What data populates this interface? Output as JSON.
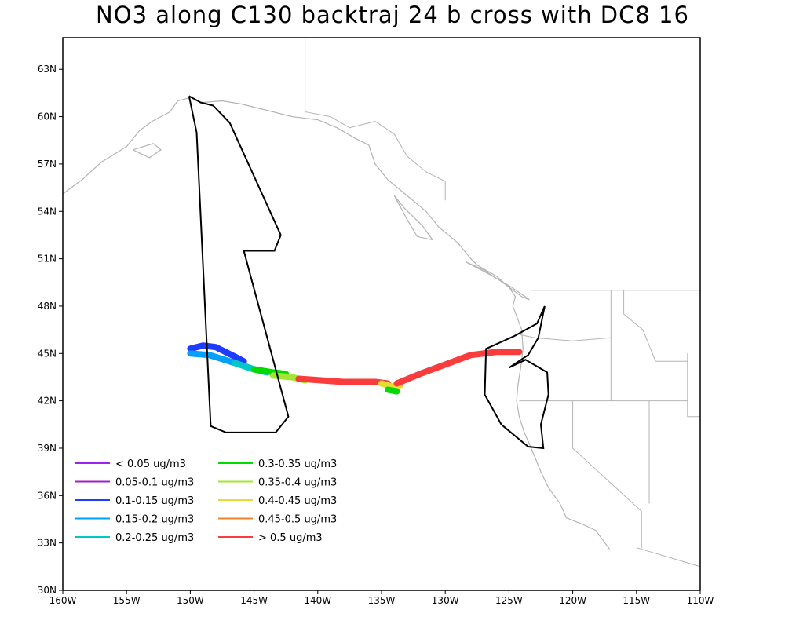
{
  "title": "NO3 along C130 backtraj 24 b cross with DC8 16",
  "map": {
    "lon_range": [
      -160,
      -110
    ],
    "lat_range": [
      30,
      65
    ],
    "x_ticks": [
      {
        "lon": -160,
        "label": "160W"
      },
      {
        "lon": -155,
        "label": "155W"
      },
      {
        "lon": -150,
        "label": "150W"
      },
      {
        "lon": -145,
        "label": "145W"
      },
      {
        "lon": -140,
        "label": "140W"
      },
      {
        "lon": -135,
        "label": "135W"
      },
      {
        "lon": -130,
        "label": "130W"
      },
      {
        "lon": -125,
        "label": "125W"
      },
      {
        "lon": -120,
        "label": "120W"
      },
      {
        "lon": -115,
        "label": "115W"
      },
      {
        "lon": -110,
        "label": "110W"
      }
    ],
    "y_ticks": [
      {
        "lat": 30,
        "label": "30N"
      },
      {
        "lat": 33,
        "label": "33N"
      },
      {
        "lat": 36,
        "label": "36N"
      },
      {
        "lat": 39,
        "label": "39N"
      },
      {
        "lat": 42,
        "label": "42N"
      },
      {
        "lat": 45,
        "label": "45N"
      },
      {
        "lat": 48,
        "label": "48N"
      },
      {
        "lat": 51,
        "label": "51N"
      },
      {
        "lat": 54,
        "label": "54N"
      },
      {
        "lat": 57,
        "label": "57N"
      },
      {
        "lat": 60,
        "label": "60N"
      },
      {
        "lat": 63,
        "label": "63N"
      }
    ],
    "colors": {
      "coast": "#b4b4b4",
      "flight_track": "#000000",
      "frame": "#000000"
    }
  },
  "legend": [
    {
      "label": "< 0.05 ug/m3",
      "color": "#a020f0"
    },
    {
      "label": "0.05-0.1 ug/m3",
      "color": "#a020c8"
    },
    {
      "label": "0.1-0.15 ug/m3",
      "color": "#1e3cff"
    },
    {
      "label": "0.15-0.2 ug/m3",
      "color": "#00a0ff"
    },
    {
      "label": "0.2-0.25 ug/m3",
      "color": "#00c8c8"
    },
    {
      "label": "0.3-0.35 ug/m3",
      "color": "#00dc00"
    },
    {
      "label": "0.35-0.4 ug/m3",
      "color": "#a0e632"
    },
    {
      "label": "0.4-0.45 ug/m3",
      "color": "#e6dc32"
    },
    {
      "label": "0.45-0.5 ug/m3",
      "color": "#f08228"
    },
    {
      "label": "> 0.5 ug/m3",
      "color": "#fa3c3c"
    }
  ],
  "flight_track": [
    [
      -150.1,
      61.3
    ],
    [
      -149.2,
      60.9
    ],
    [
      -148.2,
      60.7
    ],
    [
      -146.9,
      59.6
    ],
    [
      -142.9,
      52.5
    ],
    [
      -143.4,
      51.5
    ],
    [
      -145.8,
      51.5
    ],
    [
      -142.3,
      41.0
    ],
    [
      -143.3,
      40.0
    ],
    [
      -147.2,
      40.0
    ],
    [
      -148.4,
      40.4
    ],
    [
      -149.5,
      59.0
    ],
    [
      -150.1,
      61.3
    ]
  ],
  "dc8_track": [
    [
      -122.2,
      48.0
    ],
    [
      -122.8,
      46.9
    ],
    [
      -124.6,
      46.1
    ],
    [
      -126.8,
      45.3
    ],
    [
      -126.9,
      42.4
    ],
    [
      -125.6,
      40.5
    ],
    [
      -123.5,
      39.1
    ],
    [
      -122.3,
      39.0
    ],
    [
      -122.5,
      40.5
    ],
    [
      -121.9,
      42.4
    ],
    [
      -122.0,
      43.8
    ],
    [
      -123.7,
      44.6
    ],
    [
      -125.0,
      44.1
    ],
    [
      -123.5,
      44.9
    ],
    [
      -122.7,
      46.0
    ],
    [
      -122.2,
      48.0
    ]
  ],
  "trajectory_bands": [
    {
      "color": "#1e3cff",
      "points": [
        [
          -150.0,
          45.3
        ],
        [
          -149.0,
          45.5
        ],
        [
          -148.0,
          45.4
        ],
        [
          -146.5,
          44.8
        ],
        [
          -145.8,
          44.5
        ]
      ]
    },
    {
      "color": "#00a0ff",
      "points": [
        [
          -150.0,
          45.0
        ],
        [
          -148.5,
          44.9
        ],
        [
          -146.5,
          44.4
        ],
        [
          -145.0,
          44.0
        ]
      ]
    },
    {
      "color": "#00c8c8",
      "points": [
        [
          -146.5,
          44.4
        ],
        [
          -145.0,
          44.0
        ],
        [
          -144.0,
          43.8
        ]
      ]
    },
    {
      "color": "#00dc00",
      "points": [
        [
          -145.0,
          44.0
        ],
        [
          -143.5,
          43.8
        ],
        [
          -142.5,
          43.7
        ]
      ]
    },
    {
      "color": "#a0e632",
      "points": [
        [
          -143.5,
          43.6
        ],
        [
          -142.0,
          43.5
        ],
        [
          -141.0,
          43.3
        ]
      ]
    },
    {
      "color": "#fa3c3c",
      "points": [
        [
          -141.5,
          43.4
        ],
        [
          -138.0,
          43.2
        ],
        [
          -135.5,
          43.2
        ],
        [
          -134.5,
          43.1
        ]
      ]
    },
    {
      "color": "#e6dc32",
      "points": [
        [
          -135.0,
          43.1
        ],
        [
          -134.2,
          42.9
        ],
        [
          -133.5,
          43.0
        ]
      ]
    },
    {
      "color": "#00dc00",
      "points": [
        [
          -134.5,
          42.7
        ],
        [
          -133.8,
          42.6
        ]
      ]
    },
    {
      "color": "#fa3c3c",
      "points": [
        [
          -133.8,
          43.1
        ],
        [
          -132.0,
          43.7
        ],
        [
          -130.0,
          44.3
        ],
        [
          -128.0,
          44.9
        ],
        [
          -126.0,
          45.1
        ],
        [
          -124.2,
          45.1
        ]
      ]
    }
  ],
  "coastlines": [
    [
      [
        -160.0,
        55.1
      ],
      [
        -158.5,
        56.0
      ],
      [
        -157.0,
        57.1
      ],
      [
        -155.0,
        58.1
      ],
      [
        -154.0,
        59.1
      ],
      [
        -153.0,
        59.7
      ],
      [
        -151.6,
        60.3
      ],
      [
        -151.0,
        61.0
      ],
      [
        -150.0,
        61.2
      ]
    ],
    [
      [
        -149.0,
        60.9
      ],
      [
        -147.5,
        61.0
      ],
      [
        -146.0,
        60.8
      ],
      [
        -144.0,
        60.4
      ],
      [
        -142.0,
        60.0
      ],
      [
        -140.0,
        59.8
      ],
      [
        -138.5,
        59.3
      ],
      [
        -137.0,
        58.6
      ],
      [
        -136.0,
        58.2
      ],
      [
        -135.5,
        57.0
      ],
      [
        -134.5,
        56.0
      ],
      [
        -133.0,
        55.0
      ],
      [
        -131.5,
        54.0
      ],
      [
        -130.5,
        53.0
      ],
      [
        -129.0,
        52.0
      ],
      [
        -128.0,
        51.0
      ],
      [
        -127.5,
        50.6
      ],
      [
        -126.0,
        49.9
      ],
      [
        -125.0,
        49.2
      ],
      [
        -124.5,
        48.6
      ],
      [
        -124.7,
        48.0
      ],
      [
        -124.0,
        46.5
      ],
      [
        -123.9,
        45.3
      ],
      [
        -124.1,
        44.0
      ],
      [
        -124.3,
        43.0
      ],
      [
        -124.4,
        42.0
      ],
      [
        -124.2,
        41.0
      ],
      [
        -123.8,
        40.0
      ],
      [
        -123.0,
        38.5
      ],
      [
        -122.5,
        37.5
      ],
      [
        -121.9,
        36.5
      ],
      [
        -121.0,
        35.5
      ],
      [
        -120.5,
        34.6
      ],
      [
        -119.0,
        34.1
      ],
      [
        -118.2,
        33.8
      ],
      [
        -117.1,
        32.6
      ]
    ],
    [
      [
        -134.0,
        55.0
      ],
      [
        -133.2,
        54.2
      ],
      [
        -131.8,
        53.1
      ],
      [
        -131.0,
        52.2
      ],
      [
        -132.2,
        52.4
      ],
      [
        -133.0,
        53.5
      ],
      [
        -134.0,
        55.0
      ]
    ],
    [
      [
        -128.4,
        50.8
      ],
      [
        -127.0,
        50.3
      ],
      [
        -125.5,
        49.5
      ],
      [
        -124.0,
        48.6
      ],
      [
        -123.4,
        48.4
      ],
      [
        -124.8,
        49.2
      ],
      [
        -126.5,
        50.0
      ],
      [
        -128.4,
        50.8
      ]
    ],
    [
      [
        -154.5,
        57.9
      ],
      [
        -153.2,
        57.4
      ],
      [
        -152.3,
        57.9
      ],
      [
        -152.9,
        58.3
      ],
      [
        -154.5,
        57.9
      ]
    ]
  ],
  "boundaries": [
    [
      [
        -141.0,
        65.0
      ],
      [
        -141.0,
        60.3
      ],
      [
        -139.0,
        60.0
      ],
      [
        -137.5,
        59.3
      ],
      [
        -135.5,
        59.7
      ],
      [
        -134.0,
        58.9
      ],
      [
        -133.0,
        57.5
      ],
      [
        -131.5,
        56.5
      ],
      [
        -130.0,
        55.9
      ],
      [
        -130.0,
        54.7
      ]
    ],
    [
      [
        -123.3,
        49.0
      ],
      [
        -110.0,
        49.0
      ]
    ],
    [
      [
        -124.2,
        46.2
      ],
      [
        -123.0,
        46.0
      ],
      [
        -120.0,
        45.8
      ],
      [
        -117.0,
        46.0
      ],
      [
        -117.0,
        42.0
      ]
    ],
    [
      [
        -124.2,
        42.0
      ],
      [
        -111.0,
        42.0
      ]
    ],
    [
      [
        -120.0,
        42.0
      ],
      [
        -120.0,
        39.0
      ],
      [
        -114.6,
        35.0
      ],
      [
        -114.6,
        32.7
      ]
    ],
    [
      [
        -117.0,
        49.0
      ],
      [
        -117.0,
        46.0
      ]
    ],
    [
      [
        -116.0,
        49.0
      ],
      [
        -116.0,
        47.5
      ],
      [
        -114.5,
        46.5
      ],
      [
        -113.5,
        44.5
      ],
      [
        -111.0,
        44.5
      ]
    ],
    [
      [
        -114.0,
        42.0
      ],
      [
        -114.0,
        35.5
      ]
    ],
    [
      [
        -115.0,
        32.7
      ],
      [
        -110.0,
        31.5
      ]
    ],
    [
      [
        -111.0,
        45.0
      ],
      [
        -111.0,
        41.0
      ],
      [
        -110.0,
        41.0
      ]
    ],
    [
      [
        -160.0,
        49.0
      ],
      [
        -160.0,
        49.0
      ]
    ]
  ]
}
